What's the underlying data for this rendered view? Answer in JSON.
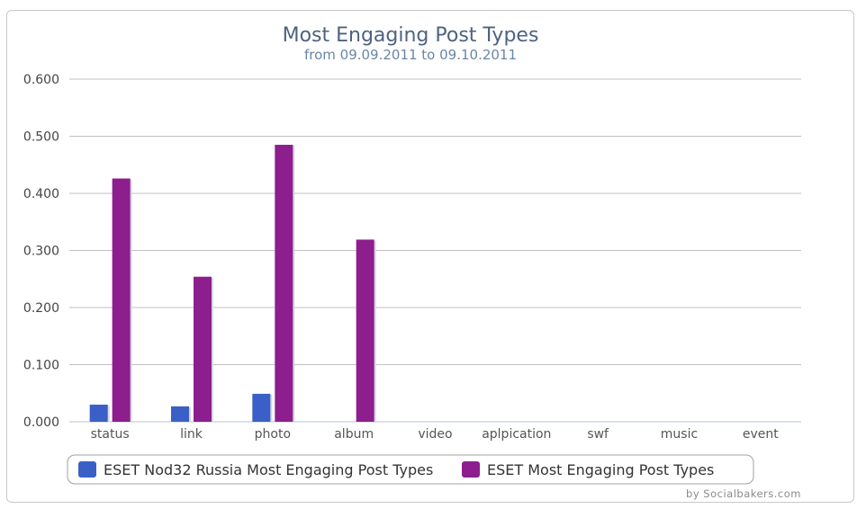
{
  "chart_data": {
    "type": "bar",
    "title": "Most Engaging Post Types",
    "subtitle": "from 09.09.2011 to 09.10.2011",
    "xlabel": "",
    "ylabel": "",
    "categories": [
      "status",
      "link",
      "photo",
      "album",
      "video",
      "aplpication",
      "swf",
      "music",
      "event"
    ],
    "series": [
      {
        "name": "ESET Nod32 Russia Most Engaging Post Types",
        "color": "#3a5fc6",
        "values": [
          0.03,
          0.027,
          0.049,
          0,
          0,
          0,
          0,
          0,
          0
        ]
      },
      {
        "name": "ESET Most Engaging Post Types",
        "color": "#8d1e8e",
        "values": [
          0.426,
          0.254,
          0.485,
          0.319,
          0,
          0,
          0,
          0,
          0
        ]
      }
    ],
    "ylim": [
      0,
      0.6
    ],
    "yticks": [
      "0.000",
      "0.100",
      "0.200",
      "0.300",
      "0.400",
      "0.500",
      "0.600"
    ],
    "ytick_values": [
      0,
      0.1,
      0.2,
      0.3,
      0.4,
      0.5,
      0.6
    ],
    "grid": true,
    "legend_position": "bottom"
  },
  "credit": "by Socialbakers.com"
}
